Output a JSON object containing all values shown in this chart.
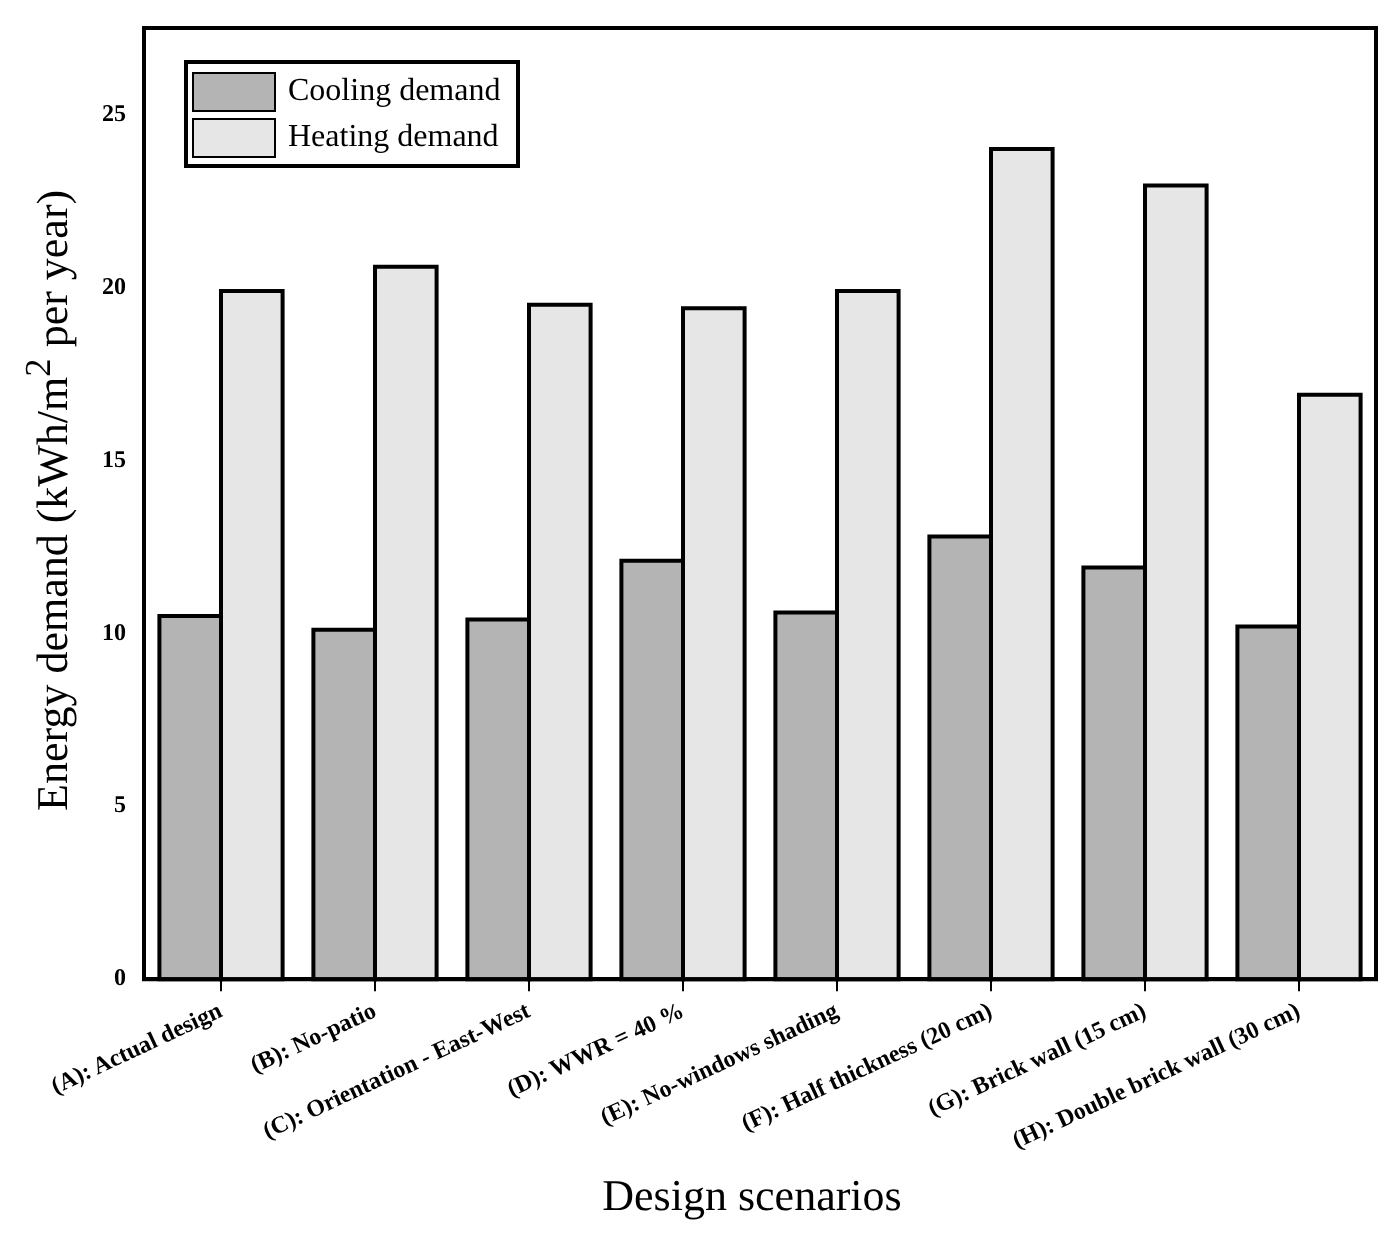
{
  "chart_data": {
    "type": "bar",
    "xlabel": "Design scenarios",
    "ylabel": "Energy demand (kWh/m$^{2}$ per year)",
    "categories": [
      "(A): Actual design",
      "(B): No-patio",
      "(C): Orientation - East-West",
      "(D): WWR = 40 %",
      "(E): No-windows shading",
      "(F): Half thickness (20 cm)",
      "(G): Brick wall (15 cm)",
      "(H): Double brick wall (30 cm)"
    ],
    "series": [
      {
        "name": "Cooling demand",
        "color": "#b4b4b4",
        "values": [
          10.5,
          10.1,
          10.4,
          12.1,
          10.6,
          12.8,
          11.9,
          10.2
        ]
      },
      {
        "name": "Heating demand",
        "color": "#e6e6e6",
        "values": [
          19.9,
          20.6,
          19.5,
          19.4,
          19.9,
          24.0,
          22.95,
          16.9
        ]
      }
    ],
    "ylim": [
      0,
      27.5
    ],
    "yticks": [
      0,
      5,
      10,
      15,
      20,
      25
    ],
    "grid": false,
    "legend": "top left"
  }
}
